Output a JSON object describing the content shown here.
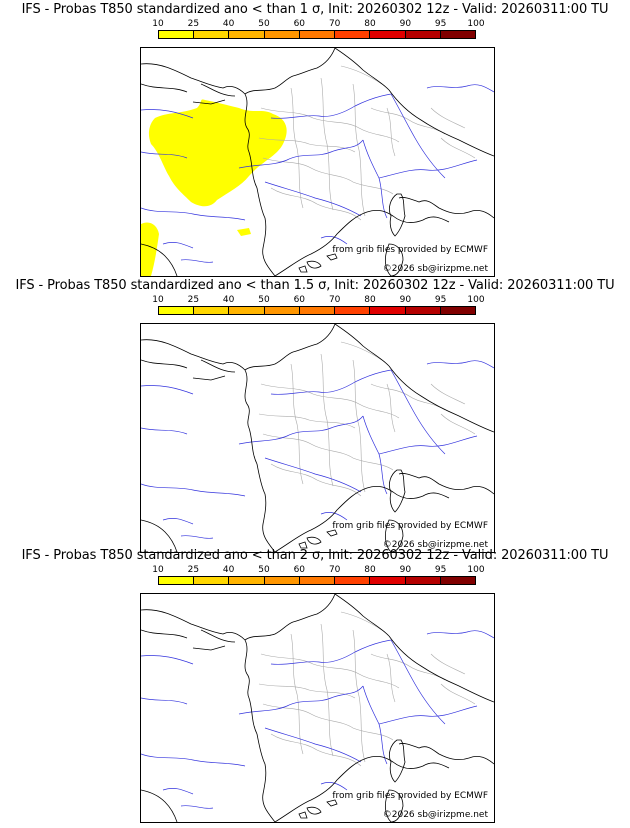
{
  "legend": {
    "ticks": [
      "10",
      "25",
      "40",
      "50",
      "60",
      "70",
      "80",
      "90",
      "95",
      "100"
    ],
    "colors": [
      "#ffff00",
      "#ffd700",
      "#ffb400",
      "#ff9600",
      "#ff7800",
      "#ff4000",
      "#e00000",
      "#b40000",
      "#800000"
    ]
  },
  "map_colors": {
    "coast": "#000000",
    "rivers": "#3333dd",
    "borders": "#aaaaaa",
    "prob_fill": "#ffff00"
  },
  "panels": [
    {
      "title": "IFS - Probas T850  standardized ano < than 1 σ, Init: 20260302 12z - Valid: 20260311:00 TU",
      "credit_source": "from grib files provided by ECMWF",
      "credit_copyright": "©2026 sb@irizpme.net",
      "has_probability_area": true
    },
    {
      "title": "IFS - Probas T850  standardized ano < than 1.5 σ, Init: 20260302 12z - Valid: 20260311:00 TU",
      "credit_source": "from grib files provided by ECMWF",
      "credit_copyright": "©2026 sb@irizpme.net",
      "has_probability_area": false
    },
    {
      "title": "IFS - Probas T850  standardized ano < than 2 σ, Init: 20260302 12z - Valid: 20260311:00 TU",
      "credit_source": "from grib files provided by ECMWF",
      "credit_copyright": "©2026 sb@irizpme.net",
      "has_probability_area": false
    }
  ]
}
